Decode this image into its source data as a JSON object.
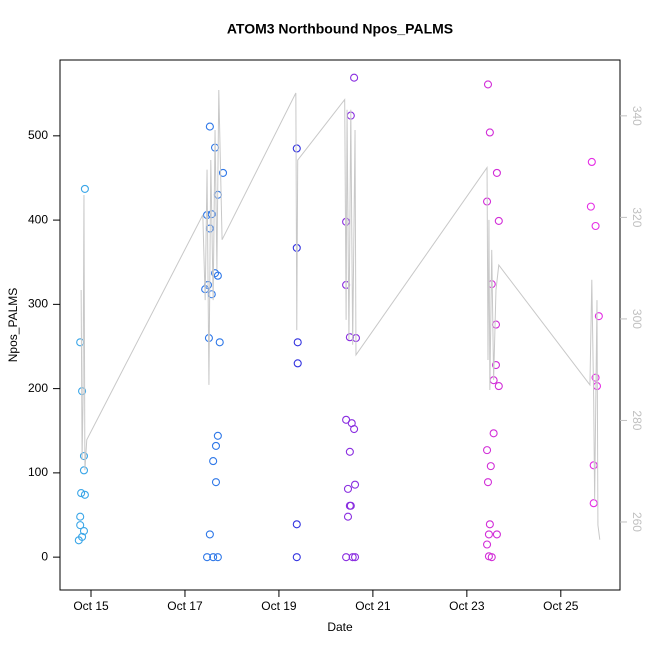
{
  "chart_data": {
    "type": "scatter",
    "title": "ATOM3 Northbound Npos_PALMS",
    "x_label": "Date",
    "y_label": "Npos_PALMS",
    "xlim": [
      14.34,
      26.26
    ],
    "xticks": [
      {
        "value": 15,
        "label": "Oct 15"
      },
      {
        "value": 17,
        "label": "Oct 17"
      },
      {
        "value": 19,
        "label": "Oct 19"
      },
      {
        "value": 21,
        "label": "Oct 21"
      },
      {
        "value": 23,
        "label": "Oct 23"
      },
      {
        "value": 25,
        "label": "Oct 25"
      }
    ],
    "ylim": [
      -39,
      590
    ],
    "yticks": [
      0,
      100,
      200,
      300,
      400,
      500
    ],
    "y2lim": [
      246.6,
      351
    ],
    "y2ticks": [
      260,
      280,
      300,
      320,
      340
    ],
    "y2_color": "#c0c0c0",
    "series": [
      {
        "color": "#3aa6e8",
        "x": [
          14.77,
          14.81,
          14.85,
          14.85,
          14.87,
          14.79,
          14.77,
          14.77,
          14.85,
          14.81,
          14.74,
          14.87
        ],
        "values": [
          255,
          197,
          120,
          103,
          74,
          76,
          48,
          38,
          31,
          24,
          20,
          437
        ]
      },
      {
        "color": "#2f78e8",
        "x": [
          17.53,
          17.64,
          17.7,
          17.81,
          17.47,
          17.57,
          17.53,
          17.64,
          17.7,
          17.49,
          17.43,
          17.57,
          17.51,
          17.74,
          17.7,
          17.66,
          17.6,
          17.66,
          17.53,
          17.47,
          17.6,
          17.7
        ],
        "values": [
          511,
          486,
          430,
          456,
          406,
          407,
          390,
          337,
          334,
          323,
          318,
          312,
          260,
          255,
          144,
          132,
          114,
          89,
          27,
          0,
          0,
          0
        ]
      },
      {
        "color": "#3434e0",
        "x": [
          19.38,
          19.38,
          19.4,
          19.4,
          19.38,
          19.38
        ],
        "values": [
          485,
          367,
          255,
          230,
          39,
          0
        ]
      },
      {
        "color": "#8a2ee0",
        "x": [
          20.6,
          20.53,
          20.43,
          20.43,
          20.51,
          20.64,
          20.43,
          20.55,
          20.6,
          20.51,
          20.62,
          20.47,
          20.53,
          20.51,
          20.47,
          20.43,
          20.57,
          20.62
        ],
        "values": [
          569,
          524,
          398,
          323,
          261,
          260,
          163,
          159,
          152,
          125,
          86,
          81,
          61,
          61,
          48,
          0,
          0,
          0
        ]
      },
      {
        "color": "#d22ed8",
        "x": [
          23.45,
          23.49,
          23.64,
          23.43,
          23.68,
          23.53,
          23.62,
          23.62,
          23.57,
          23.68,
          23.57,
          23.43,
          23.51,
          23.45,
          23.49,
          23.47,
          23.64,
          23.43,
          23.47,
          23.53
        ],
        "values": [
          561,
          504,
          456,
          422,
          399,
          324,
          276,
          228,
          210,
          203,
          147,
          127,
          108,
          89,
          39,
          27,
          27,
          15,
          1,
          0
        ]
      },
      {
        "color": "#e52ee5",
        "x": [
          25.66,
          25.64,
          25.74,
          25.81,
          25.74,
          25.77,
          25.7,
          25.7
        ],
        "values": [
          469,
          416,
          393,
          286,
          213,
          203,
          109,
          64
        ]
      },
      {
        "type": "line",
        "axis": "y2",
        "color": "#c8c8c8",
        "x": [
          14.79,
          14.81,
          14.83,
          14.85,
          14.87,
          14.91,
          17.38,
          17.43,
          17.47,
          17.51,
          17.55,
          17.6,
          17.64,
          17.68,
          17.72,
          17.79,
          19.36,
          19.38,
          19.4,
          20.4,
          20.43,
          20.45,
          20.49,
          20.53,
          20.57,
          20.62,
          20.64,
          23.43,
          23.45,
          23.47,
          23.49,
          23.53,
          23.57,
          23.62,
          23.68,
          25.62,
          25.66,
          25.7,
          25.72,
          25.77,
          25.79,
          25.83
        ],
        "values": [
          305.7,
          272.2,
          284.0,
          324.4,
          270.2,
          276.2,
          320.5,
          303.7,
          329.4,
          287.0,
          331.3,
          303.7,
          337.2,
          309.7,
          345.1,
          315.6,
          344.5,
          297.8,
          331.3,
          343.2,
          299.8,
          341.2,
          295.9,
          341.2,
          294.9,
          337.2,
          292.9,
          329.8,
          291.9,
          319.5,
          286.0,
          313.6,
          288.0,
          305.7,
          310.6,
          287.0,
          307.7,
          284.0,
          264.3,
          303.7,
          259.4,
          256.5
        ]
      }
    ]
  }
}
